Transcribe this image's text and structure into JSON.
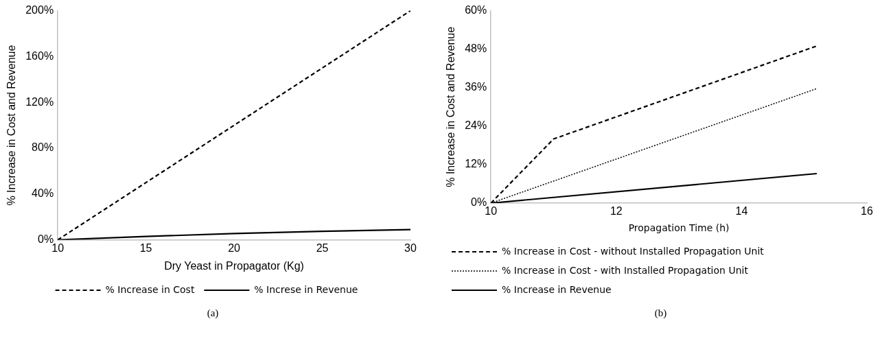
{
  "chart_data": [
    {
      "type": "line",
      "xlabel": "Dry Yeast in Propagator (Kg)",
      "ylabel": "% Increase in Cost and Revenue",
      "annotations": [
        "(a)"
      ],
      "xlim": [
        10,
        30
      ],
      "xticks": [
        10,
        15,
        20,
        25,
        30
      ],
      "ylim": [
        0,
        200
      ],
      "yticks": [
        {
          "value": 0,
          "label": "0%"
        },
        {
          "value": 40,
          "label": "40%"
        },
        {
          "value": 80,
          "label": "80%"
        },
        {
          "value": 120,
          "label": "120%"
        },
        {
          "value": 160,
          "label": "160%"
        },
        {
          "value": 200,
          "label": "200%"
        }
      ],
      "grid": false,
      "legend": "bottom",
      "marker": "none",
      "series": [
        {
          "name": "% Increase in Cost",
          "color": "#000000",
          "line_style": "dashed",
          "x": [
            10,
            30
          ],
          "values": [
            0,
            200
          ]
        },
        {
          "name": "% Increse in Revenue",
          "color": "#000000",
          "line_style": "solid",
          "x": [
            10,
            15,
            20,
            25,
            30
          ],
          "values": [
            0,
            3,
            5.5,
            7.5,
            9
          ]
        }
      ]
    },
    {
      "type": "line",
      "xlabel": "Propagation Time (h)",
      "ylabel": "% Increase in Cost and Revenue",
      "annotations": [
        "(b)"
      ],
      "xlim": [
        10,
        16
      ],
      "xticks": [
        10,
        12,
        14,
        16
      ],
      "ylim": [
        0,
        60
      ],
      "yticks": [
        {
          "value": 0,
          "label": "0%"
        },
        {
          "value": 12,
          "label": "12%"
        },
        {
          "value": 24,
          "label": "24%"
        },
        {
          "value": 36,
          "label": "36%"
        },
        {
          "value": 48,
          "label": "48%"
        },
        {
          "value": 60,
          "label": "60%"
        }
      ],
      "grid": false,
      "legend": "bottom",
      "marker": "none",
      "series": [
        {
          "name": "% Increase in Cost - without Installed Propagation Unit",
          "color": "#000000",
          "line_style": "dashed",
          "x": [
            10,
            11,
            15.2
          ],
          "values": [
            0,
            20,
            49
          ]
        },
        {
          "name": "% Increase in Cost - with Installed Propagation Unit",
          "color": "#000000",
          "line_style": "dotted",
          "x": [
            10,
            15.2
          ],
          "values": [
            0,
            35.7
          ]
        },
        {
          "name": "% Increase in Revenue",
          "color": "#000000",
          "line_style": "solid",
          "x": [
            10,
            15.2
          ],
          "values": [
            0,
            9.2
          ]
        }
      ]
    }
  ]
}
